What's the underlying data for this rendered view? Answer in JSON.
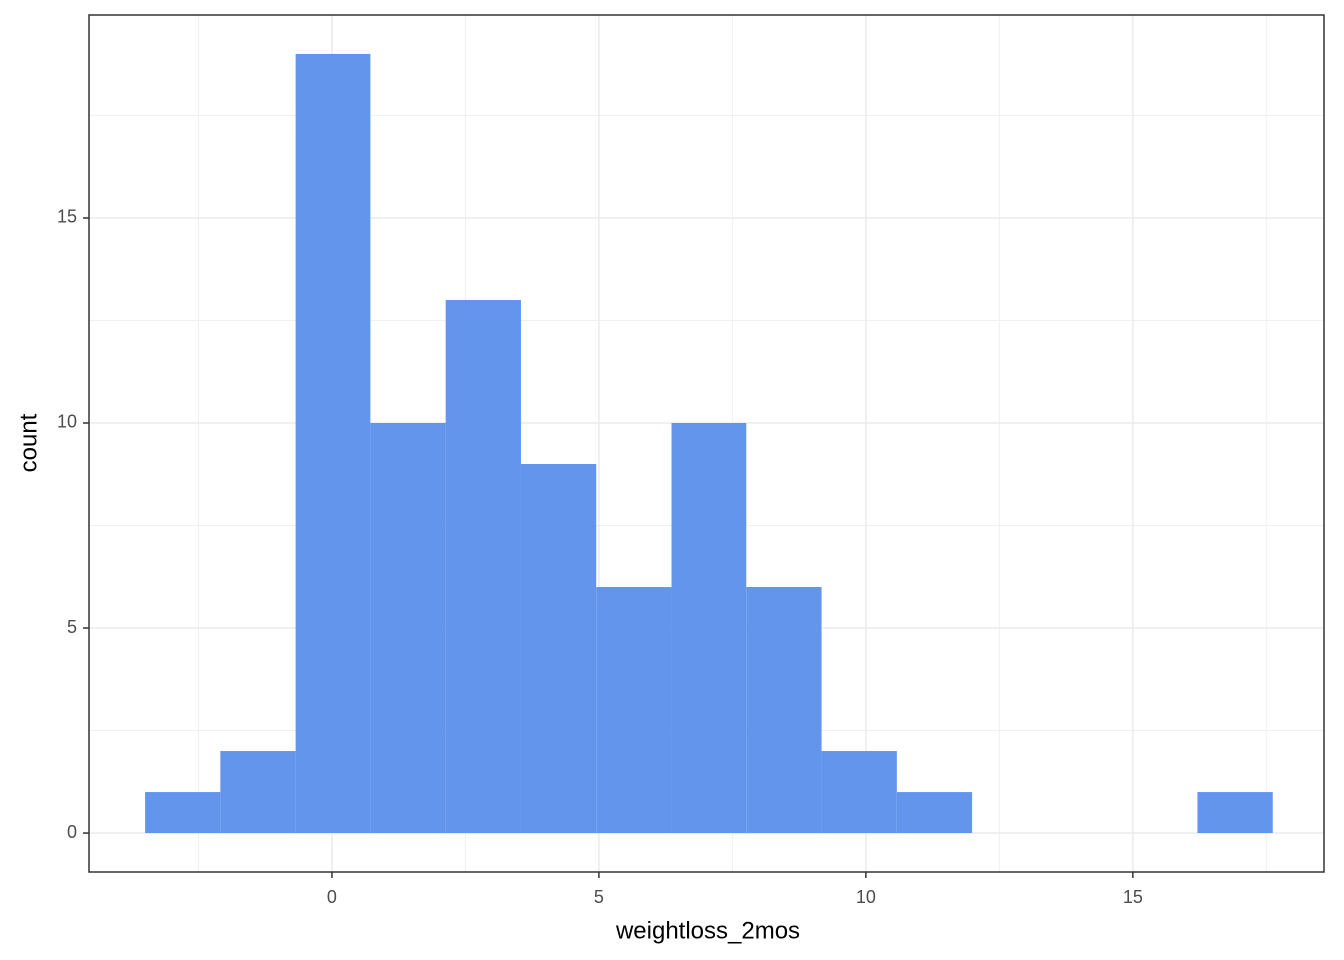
{
  "chart_data": {
    "type": "histogram",
    "x_label": "weightloss_2mos",
    "y_label": "count",
    "bins": [
      -3.5,
      -2.09,
      -0.68,
      0.72,
      2.13,
      3.54,
      4.95,
      6.36,
      7.76,
      9.17,
      10.58,
      11.99,
      13.4,
      14.8,
      16.21,
      17.62
    ],
    "values": [
      1,
      2,
      19,
      10,
      13,
      9,
      6,
      10,
      6,
      2,
      1,
      0,
      0,
      0,
      1
    ],
    "color": "#6495ed",
    "xlim": [
      -4.55,
      18.58
    ],
    "ylim": [
      -0.95,
      19.95
    ],
    "xticks": [
      0,
      5,
      10,
      15
    ],
    "yticks": [
      0,
      5,
      10,
      15
    ],
    "x_minor_ticks": [
      -2.5,
      2.5,
      7.5,
      12.5,
      17.5
    ],
    "y_minor_ticks": [
      2.5,
      7.5,
      12.5,
      17.5
    ],
    "grid": true
  }
}
